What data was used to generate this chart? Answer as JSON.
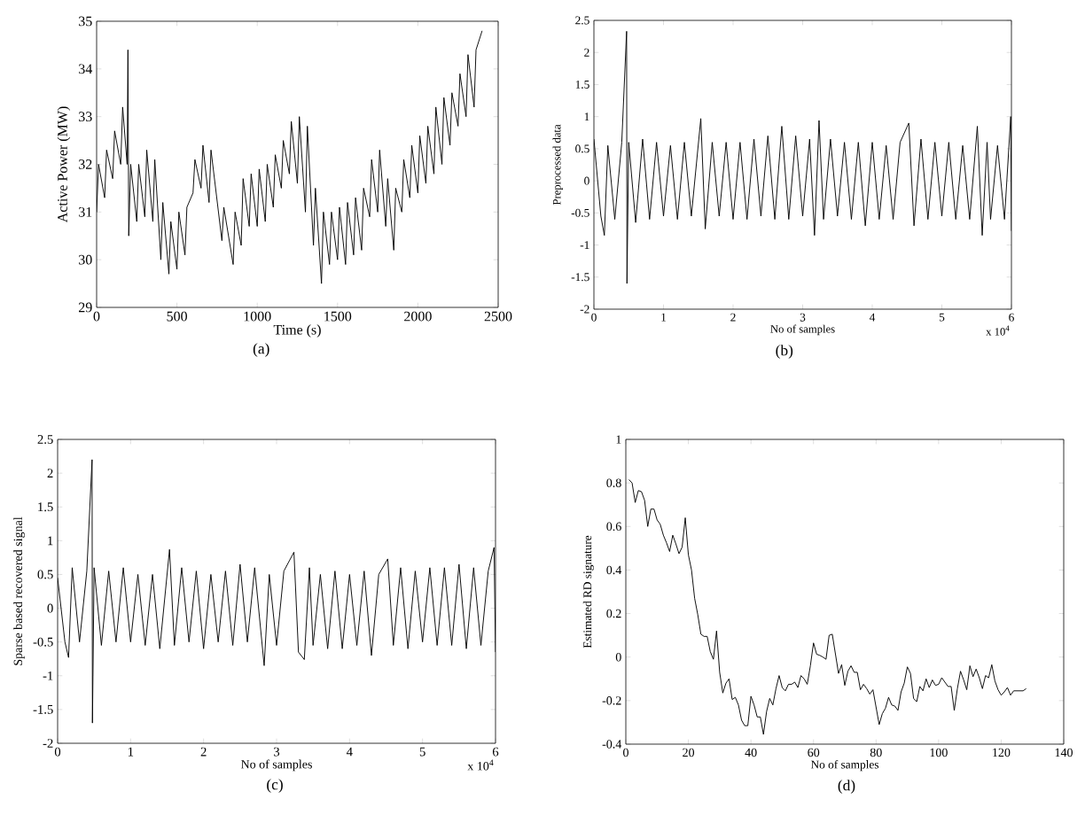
{
  "chart_data": [
    {
      "type": "line",
      "ylabel": "Active Power (MW)",
      "xlabel": "Time (s)",
      "color": "#000000",
      "annotations": [
        "(a)"
      ],
      "xlim": [
        0,
        2500
      ],
      "ylim": [
        29,
        35
      ],
      "xticks": [
        0,
        500,
        1000,
        1500,
        2000,
        2500
      ],
      "yticks": [
        29,
        30,
        31,
        32,
        33,
        34,
        35
      ],
      "x": [
        0,
        12,
        50,
        62,
        100,
        112,
        150,
        162,
        190,
        195,
        200,
        212,
        250,
        262,
        300,
        312,
        350,
        362,
        400,
        412,
        450,
        462,
        500,
        512,
        550,
        562,
        600,
        612,
        650,
        662,
        700,
        712,
        780,
        792,
        850,
        862,
        900,
        912,
        950,
        962,
        1000,
        1012,
        1050,
        1062,
        1100,
        1112,
        1150,
        1162,
        1200,
        1212,
        1250,
        1262,
        1300,
        1312,
        1350,
        1362,
        1400,
        1412,
        1450,
        1462,
        1500,
        1512,
        1550,
        1562,
        1600,
        1612,
        1650,
        1662,
        1700,
        1712,
        1750,
        1762,
        1800,
        1812,
        1850,
        1862,
        1900,
        1912,
        1950,
        1962,
        2000,
        2012,
        2050,
        2062,
        2100,
        2112,
        2150,
        2162,
        2200,
        2212,
        2250,
        2262,
        2300,
        2312,
        2350,
        2362,
        2400
      ],
      "values": [
        31.0,
        32.0,
        31.3,
        32.3,
        31.7,
        32.7,
        32.0,
        33.2,
        32.0,
        34.4,
        30.5,
        32.0,
        30.8,
        32.0,
        30.9,
        32.3,
        30.8,
        32.1,
        30.0,
        31.2,
        29.7,
        30.8,
        29.8,
        31.0,
        30.1,
        31.1,
        31.4,
        32.1,
        31.5,
        32.4,
        31.2,
        32.3,
        30.4,
        31.1,
        29.9,
        31.0,
        30.3,
        31.7,
        30.7,
        31.8,
        30.7,
        31.9,
        30.8,
        32.0,
        31.1,
        32.2,
        31.5,
        32.5,
        31.8,
        32.9,
        31.6,
        33.0,
        31.0,
        32.8,
        30.3,
        31.5,
        29.5,
        31.0,
        29.9,
        31.0,
        30.0,
        31.1,
        29.9,
        31.2,
        30.1,
        31.3,
        30.2,
        31.5,
        30.9,
        32.1,
        31.0,
        32.3,
        30.7,
        31.7,
        30.2,
        31.5,
        31.0,
        32.1,
        31.3,
        32.4,
        31.4,
        32.6,
        31.6,
        32.8,
        31.8,
        33.2,
        32.0,
        33.4,
        32.4,
        33.5,
        32.8,
        33.9,
        33.0,
        34.3,
        33.2,
        34.4,
        34.8
      ]
    },
    {
      "type": "line",
      "ylabel": "Preprocessed data",
      "xlabel": "No of samples",
      "color": "#000000",
      "annotations": [
        "x 10$^{4}$",
        "(b)"
      ],
      "xlim": [
        0,
        6
      ],
      "ylim": [
        -2,
        2.5
      ],
      "xticks": [
        0,
        1,
        2,
        3,
        4,
        5,
        6
      ],
      "yticks": [
        -2,
        -1.5,
        -1,
        -0.5,
        0,
        0.5,
        1,
        1.5,
        2,
        2.5
      ],
      "x": [
        0,
        0.1,
        0.15,
        0.2,
        0.3,
        0.4,
        0.47,
        0.475,
        0.5,
        0.6,
        0.7,
        0.8,
        0.9,
        1.0,
        1.1,
        1.2,
        1.3,
        1.4,
        1.536,
        1.6,
        1.7,
        1.8,
        1.9,
        2.0,
        2.1,
        2.2,
        2.3,
        2.4,
        2.5,
        2.6,
        2.7,
        2.8,
        2.9,
        3.0,
        3.1,
        3.17,
        3.235,
        3.3,
        3.4,
        3.5,
        3.6,
        3.7,
        3.8,
        3.9,
        4.0,
        4.1,
        4.2,
        4.3,
        4.4,
        4.525,
        4.6,
        4.7,
        4.8,
        4.9,
        5.0,
        5.1,
        5.2,
        5.3,
        5.4,
        5.51,
        5.58,
        5.65,
        5.7,
        5.8,
        5.9,
        5.99,
        6.0
      ],
      "values": [
        0.65,
        -0.55,
        -0.85,
        0.55,
        -0.6,
        0.6,
        2.33,
        -1.6,
        0.6,
        -0.65,
        0.65,
        -0.6,
        0.6,
        -0.55,
        0.55,
        -0.6,
        0.6,
        -0.55,
        0.97,
        -0.75,
        0.6,
        -0.55,
        0.6,
        -0.6,
        0.6,
        -0.6,
        0.65,
        -0.55,
        0.7,
        -0.6,
        0.85,
        -0.6,
        0.7,
        -0.55,
        0.65,
        -0.85,
        0.94,
        -0.6,
        0.65,
        -0.55,
        0.6,
        -0.6,
        0.6,
        -0.7,
        0.6,
        -0.6,
        0.55,
        -0.6,
        0.6,
        0.9,
        -0.7,
        0.65,
        -0.6,
        0.6,
        -0.55,
        0.6,
        -0.6,
        0.55,
        -0.6,
        0.85,
        -0.85,
        0.6,
        -0.6,
        0.55,
        -0.6,
        1.0,
        -0.78
      ]
    },
    {
      "type": "line",
      "ylabel": "Sparse based recovered signal",
      "xlabel": "No of samples",
      "color": "#000000",
      "annotations": [
        "x 10$^{4}$",
        "(c)"
      ],
      "xlim": [
        0,
        6
      ],
      "ylim": [
        -2,
        2.5
      ],
      "xticks": [
        0,
        1,
        2,
        3,
        4,
        5,
        6
      ],
      "yticks": [
        -2,
        -1.5,
        -1,
        -0.5,
        0,
        0.5,
        1,
        1.5,
        2,
        2.5
      ],
      "x": [
        0,
        0.1,
        0.15,
        0.2,
        0.3,
        0.4,
        0.472,
        0.477,
        0.5,
        0.6,
        0.7,
        0.8,
        0.9,
        1.0,
        1.1,
        1.2,
        1.3,
        1.4,
        1.533,
        1.6,
        1.7,
        1.8,
        1.9,
        2.0,
        2.1,
        2.2,
        2.3,
        2.4,
        2.5,
        2.6,
        2.7,
        2.83,
        2.9,
        3.0,
        3.1,
        3.238,
        3.3,
        3.38,
        3.45,
        3.5,
        3.6,
        3.7,
        3.8,
        3.9,
        4.0,
        4.1,
        4.2,
        4.3,
        4.4,
        4.523,
        4.6,
        4.7,
        4.8,
        4.9,
        5.0,
        5.1,
        5.2,
        5.3,
        5.4,
        5.5,
        5.6,
        5.7,
        5.8,
        5.9,
        5.98,
        6.0
      ],
      "values": [
        0.45,
        -0.5,
        -0.73,
        0.6,
        -0.5,
        0.55,
        2.2,
        -1.7,
        0.6,
        -0.55,
        0.55,
        -0.5,
        0.6,
        -0.5,
        0.5,
        -0.55,
        0.5,
        -0.6,
        0.87,
        -0.55,
        0.6,
        -0.5,
        0.55,
        -0.6,
        0.5,
        -0.5,
        0.55,
        -0.55,
        0.65,
        -0.5,
        0.6,
        -0.85,
        0.5,
        -0.55,
        0.55,
        0.83,
        -0.65,
        -0.76,
        0.6,
        -0.55,
        0.5,
        -0.6,
        0.55,
        -0.6,
        0.5,
        -0.55,
        0.55,
        -0.7,
        0.5,
        0.73,
        -0.55,
        0.6,
        -0.6,
        0.55,
        -0.5,
        0.6,
        -0.55,
        0.6,
        -0.55,
        0.65,
        -0.6,
        0.6,
        -0.55,
        0.55,
        0.9,
        -0.65
      ]
    },
    {
      "type": "line",
      "ylabel": "Estimated RD signature",
      "xlabel": "No of samples",
      "color": "#000000",
      "annotations": [
        "(d)"
      ],
      "xlim": [
        0,
        140
      ],
      "ylim": [
        -0.4,
        1
      ],
      "xticks": [
        0,
        20,
        40,
        60,
        80,
        100,
        120,
        140
      ],
      "yticks": [
        -0.4,
        -0.2,
        0,
        0.2,
        0.4,
        0.6,
        0.8,
        1
      ],
      "x": [
        1,
        2,
        3,
        4,
        5,
        6,
        7,
        8,
        9,
        10,
        11,
        12,
        13,
        14,
        15,
        16,
        17,
        18,
        19,
        20,
        21,
        22,
        23,
        24,
        25,
        26,
        27,
        28,
        29,
        30,
        31,
        32,
        33,
        34,
        35,
        36,
        37,
        38,
        39,
        40,
        41,
        42,
        43,
        44,
        45,
        46,
        47,
        48,
        49,
        50,
        51,
        52,
        53,
        54,
        55,
        56,
        57,
        58,
        59,
        60,
        61,
        62,
        63,
        64,
        65,
        66,
        67,
        68,
        69,
        70,
        71,
        72,
        73,
        74,
        75,
        76,
        77,
        78,
        79,
        80,
        81,
        82,
        83,
        84,
        85,
        86,
        87,
        88,
        89,
        90,
        91,
        92,
        93,
        94,
        95,
        96,
        97,
        98,
        99,
        100,
        101,
        102,
        103,
        104,
        105,
        106,
        107,
        108,
        109,
        110,
        111,
        112,
        113,
        114,
        115,
        116,
        117,
        118,
        119,
        120,
        121,
        122,
        123,
        124,
        125,
        126,
        127,
        128
      ],
      "values": [
        0.815,
        0.8,
        0.71,
        0.765,
        0.76,
        0.72,
        0.6,
        0.68,
        0.68,
        0.63,
        0.61,
        0.56,
        0.525,
        0.485,
        0.56,
        0.52,
        0.475,
        0.505,
        0.64,
        0.47,
        0.4,
        0.27,
        0.195,
        0.105,
        0.095,
        0.095,
        0.025,
        -0.01,
        0.12,
        -0.07,
        -0.165,
        -0.12,
        -0.1,
        -0.195,
        -0.185,
        -0.22,
        -0.29,
        -0.315,
        -0.315,
        -0.18,
        -0.22,
        -0.275,
        -0.275,
        -0.355,
        -0.25,
        -0.19,
        -0.22,
        -0.145,
        -0.085,
        -0.14,
        -0.155,
        -0.125,
        -0.125,
        -0.115,
        -0.14,
        -0.085,
        -0.1,
        -0.125,
        -0.04,
        0.065,
        0.013,
        0.008,
        0.0,
        -0.01,
        0.1,
        0.105,
        0.015,
        -0.075,
        -0.035,
        -0.13,
        -0.065,
        -0.04,
        -0.07,
        -0.07,
        -0.15,
        -0.125,
        -0.145,
        -0.17,
        -0.15,
        -0.23,
        -0.31,
        -0.26,
        -0.235,
        -0.185,
        -0.22,
        -0.225,
        -0.245,
        -0.16,
        -0.12,
        -0.045,
        -0.075,
        -0.19,
        -0.205,
        -0.135,
        -0.155,
        -0.1,
        -0.14,
        -0.105,
        -0.13,
        -0.125,
        -0.095,
        -0.115,
        -0.135,
        -0.135,
        -0.245,
        -0.145,
        -0.065,
        -0.105,
        -0.15,
        -0.04,
        -0.09,
        -0.055,
        -0.095,
        -0.145,
        -0.085,
        -0.095,
        -0.035,
        -0.11,
        -0.15,
        -0.175,
        -0.16,
        -0.14,
        -0.175,
        -0.155,
        -0.155,
        -0.155,
        -0.155,
        -0.145
      ]
    }
  ]
}
